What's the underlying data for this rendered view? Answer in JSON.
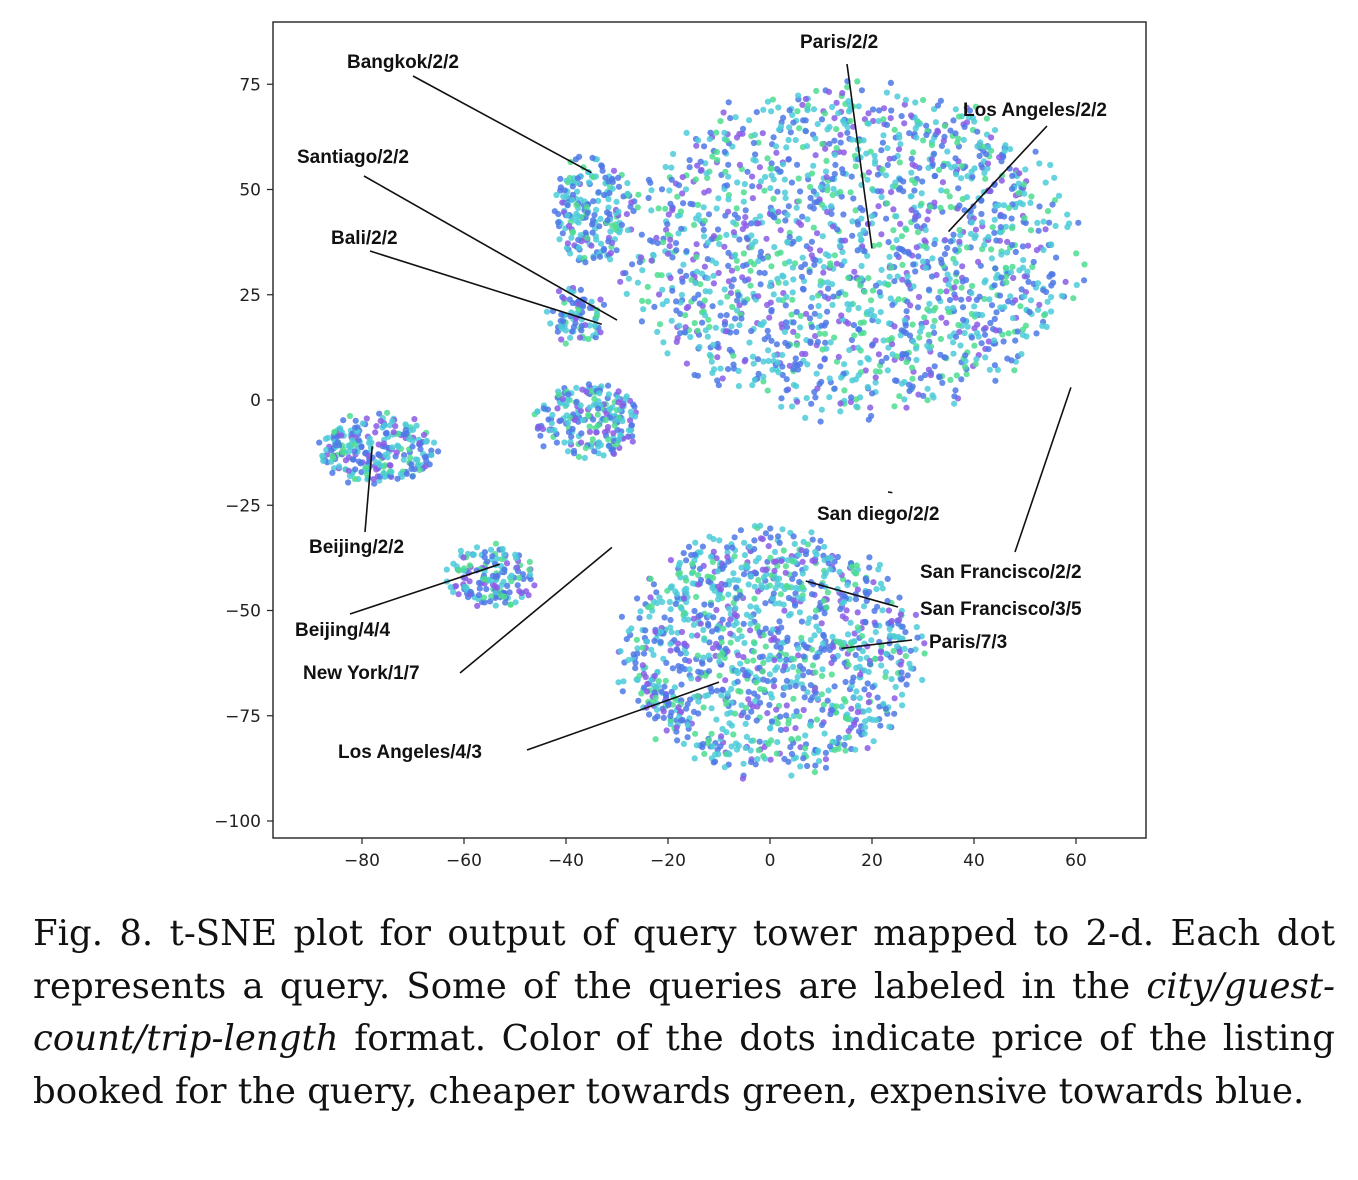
{
  "chart_data": {
    "type": "scatter",
    "title": "",
    "xlabel": "",
    "ylabel": "",
    "xlim": [
      -97,
      75
    ],
    "ylim": [
      -105,
      90
    ],
    "x_ticks": [
      -80,
      -60,
      -40,
      -20,
      0,
      20,
      40,
      60
    ],
    "y_ticks": [
      75,
      50,
      25,
      0,
      -25,
      -50,
      -75,
      -100
    ],
    "x_tick_labels": [
      "−80",
      "−60",
      "−40",
      "−20",
      "0",
      "20",
      "40",
      "60"
    ],
    "y_tick_labels": [
      "75",
      "50",
      "25",
      "0",
      "−25",
      "−50",
      "−75",
      "−100"
    ],
    "grid": false,
    "legend": "none",
    "colors": {
      "cheap": "#4ddd8f",
      "mid": "#4ccbd8",
      "expensive": "#4e78e6",
      "high": "#8a5ce6"
    },
    "clusters": [
      {
        "cx": 16,
        "cy": 35,
        "rx": 45,
        "ry": 40,
        "count": 1700
      },
      {
        "cx": -35,
        "cy": 45,
        "rx": 8,
        "ry": 13,
        "count": 200
      },
      {
        "cx": -38,
        "cy": 20,
        "rx": 6,
        "ry": 7,
        "count": 80
      },
      {
        "cx": 0,
        "cy": -60,
        "rx": 30,
        "ry": 30,
        "count": 1200
      },
      {
        "cx": -55,
        "cy": -42,
        "rx": 9,
        "ry": 8,
        "count": 160
      },
      {
        "cx": -36,
        "cy": -5,
        "rx": 11,
        "ry": 9,
        "count": 220
      },
      {
        "cx": -77,
        "cy": -12,
        "rx": 12,
        "ry": 9,
        "count": 260
      }
    ],
    "annotations": [
      {
        "text": "Bangkok/2/2",
        "point": [
          -35,
          54
        ]
      },
      {
        "text": "Paris/2/2",
        "point": [
          20,
          36
        ]
      },
      {
        "text": "Los Angeles/2/2",
        "point": [
          35,
          40
        ]
      },
      {
        "text": "Santiago/2/2",
        "point": [
          -30,
          19
        ]
      },
      {
        "text": "Bali/2/2",
        "point": [
          -33,
          18
        ]
      },
      {
        "text": "San diego/2/2",
        "point": [
          24,
          -22
        ]
      },
      {
        "text": "Beijing/2/2",
        "point": [
          -78,
          -11
        ]
      },
      {
        "text": "San Francisco/2/2",
        "point": [
          59,
          3
        ]
      },
      {
        "text": "San Francisco/3/5",
        "point": [
          7,
          -43
        ]
      },
      {
        "text": "Beijing/4/4",
        "point": [
          -53,
          -39
        ]
      },
      {
        "text": "Paris/7/3",
        "point": [
          14,
          -59
        ]
      },
      {
        "text": "New York/1/7",
        "point": [
          -31,
          -35
        ]
      },
      {
        "text": "Los Angeles/4/3",
        "point": [
          -10,
          -67
        ]
      }
    ]
  },
  "caption": {
    "prefix": "Fig. 8. t-SNE plot for output of query tower mapped to 2-d.  Each dot represents a query.  Some of the queries are labeled in the",
    "format": "city/guest-count/trip-length",
    "suffix": "format. Color of the dots indicate price of the listing booked for the query, cheaper towards green, expensive towards blue."
  }
}
